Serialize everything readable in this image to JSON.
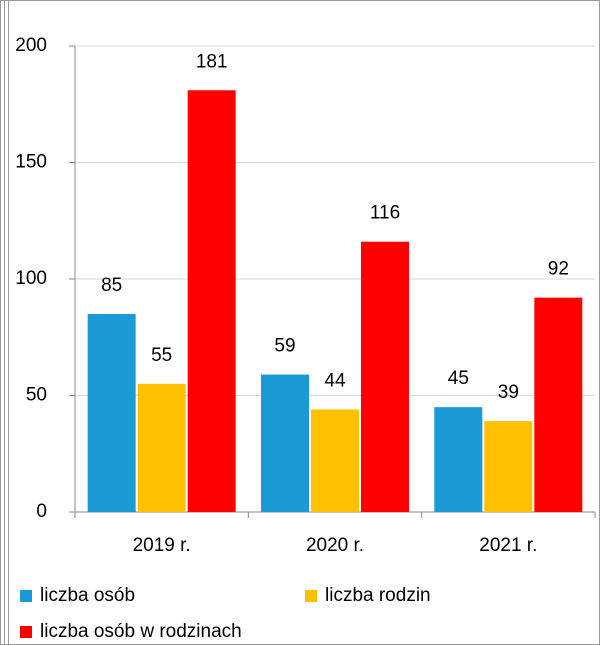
{
  "chart_data": {
    "type": "bar",
    "categories": [
      "2019 r.",
      "2020 r.",
      "2021 r."
    ],
    "series": [
      {
        "name": "liczba osób",
        "color": "#1c9ad6",
        "values": [
          85,
          59,
          45
        ]
      },
      {
        "name": "liczba rodzin",
        "color": "#ffc000",
        "values": [
          55,
          44,
          39
        ]
      },
      {
        "name": "liczba osób w rodzinach",
        "color": "#ff0000",
        "values": [
          181,
          116,
          92
        ]
      }
    ],
    "ylim": [
      0,
      200
    ],
    "yticks": [
      0,
      50,
      100,
      150,
      200
    ],
    "grid": true,
    "legend": "bottom"
  }
}
